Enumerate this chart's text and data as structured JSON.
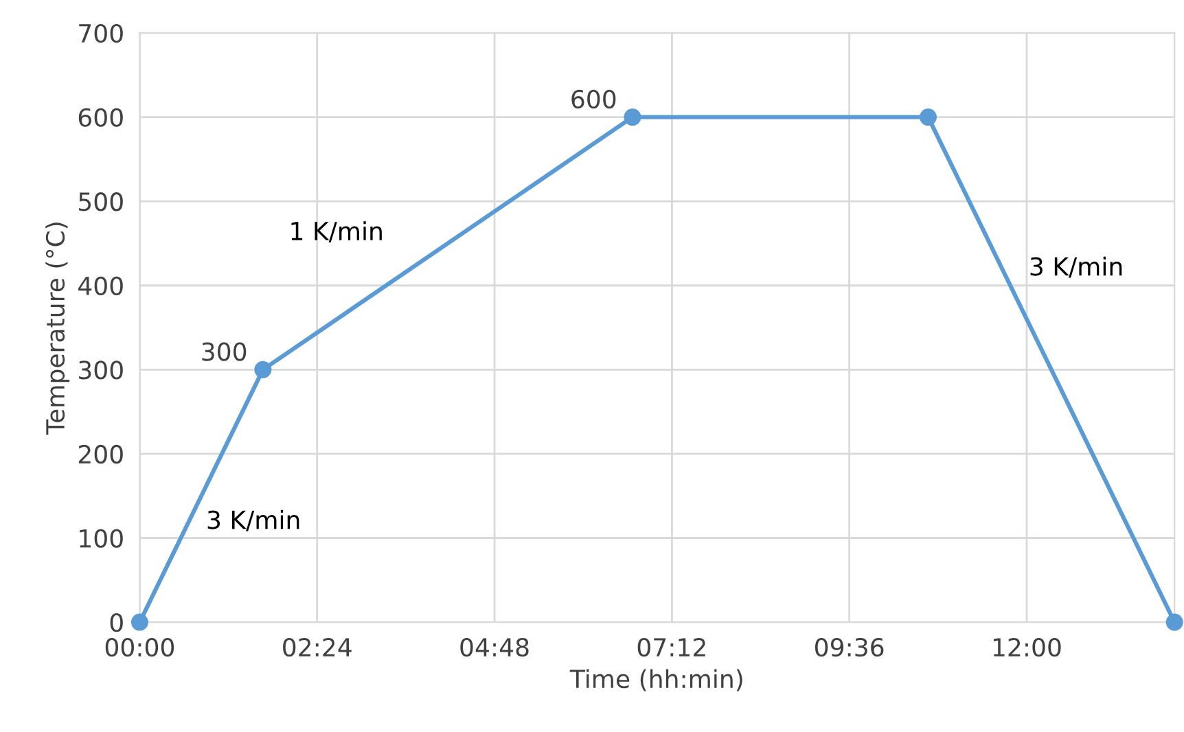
{
  "chart_data": {
    "type": "line",
    "xlabel": "Time (hh:min)",
    "ylabel": "Temperature (°C)",
    "x": [
      0,
      1.667,
      6.667,
      10.667,
      14.0
    ],
    "series": [
      {
        "color": "#5b9bd5",
        "values": [
          0,
          300,
          600,
          600,
          0
        ],
        "value_labels": [
          null,
          "300",
          "600",
          null,
          null
        ]
      }
    ],
    "xlim": [
      0,
      14.0
    ],
    "xticks": [
      {
        "value": 0,
        "label": "00:00"
      },
      {
        "value": 2.4,
        "label": "02:24"
      },
      {
        "value": 4.8,
        "label": "04:48"
      },
      {
        "value": 7.2,
        "label": "07:12"
      },
      {
        "value": 9.6,
        "label": "09:36"
      },
      {
        "value": 12.0,
        "label": "12:00"
      }
    ],
    "ylim": [
      0,
      700
    ],
    "yticks": [
      0,
      100,
      200,
      300,
      400,
      500,
      600,
      700
    ],
    "grid": true,
    "marker": "circle",
    "line_style": "solid",
    "annotations": [
      "3 K/min",
      "1 K/min",
      "3 K/min"
    ]
  }
}
